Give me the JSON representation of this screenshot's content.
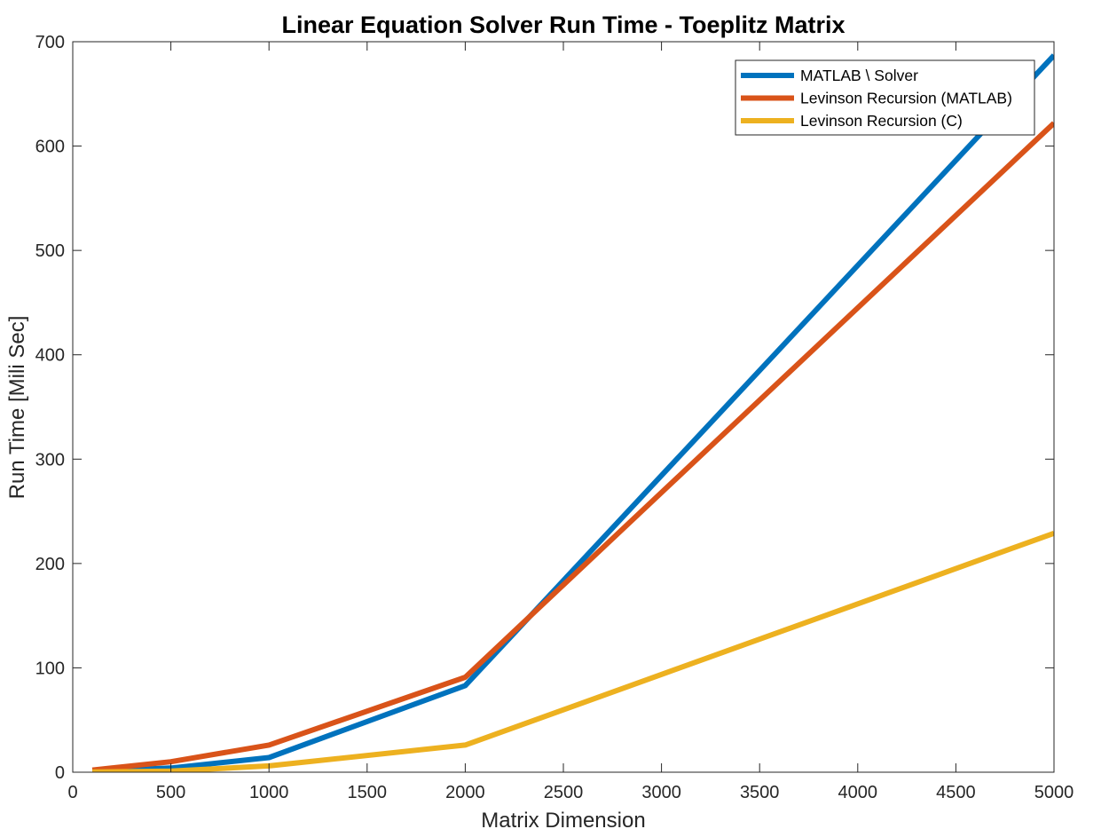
{
  "chart_data": {
    "type": "line",
    "title": "Linear Equation Solver Run Time - Toeplitz Matrix",
    "xlabel": "Matrix Dimension",
    "ylabel": "Run Time [Mili Sec]",
    "xlim": [
      0,
      5000
    ],
    "ylim": [
      0,
      700
    ],
    "xticks": [
      0,
      500,
      1000,
      1500,
      2000,
      2500,
      3000,
      3500,
      4000,
      4500,
      5000
    ],
    "yticks": [
      0,
      100,
      200,
      300,
      400,
      500,
      600,
      700
    ],
    "grid": false,
    "legend_position": "top-right",
    "x": [
      100,
      500,
      1000,
      2000,
      5000
    ],
    "series": [
      {
        "name": "MATLAB \\ Solver",
        "color": "#0072BD",
        "values": [
          1,
          4,
          14,
          83,
          687
        ]
      },
      {
        "name": "Levinson Recursion (MATLAB)",
        "color": "#D95319",
        "values": [
          2,
          10,
          26,
          91,
          622
        ]
      },
      {
        "name": "Levinson Recursion (C)",
        "color": "#EDB120",
        "values": [
          0.2,
          1,
          6,
          26,
          229
        ]
      }
    ]
  }
}
